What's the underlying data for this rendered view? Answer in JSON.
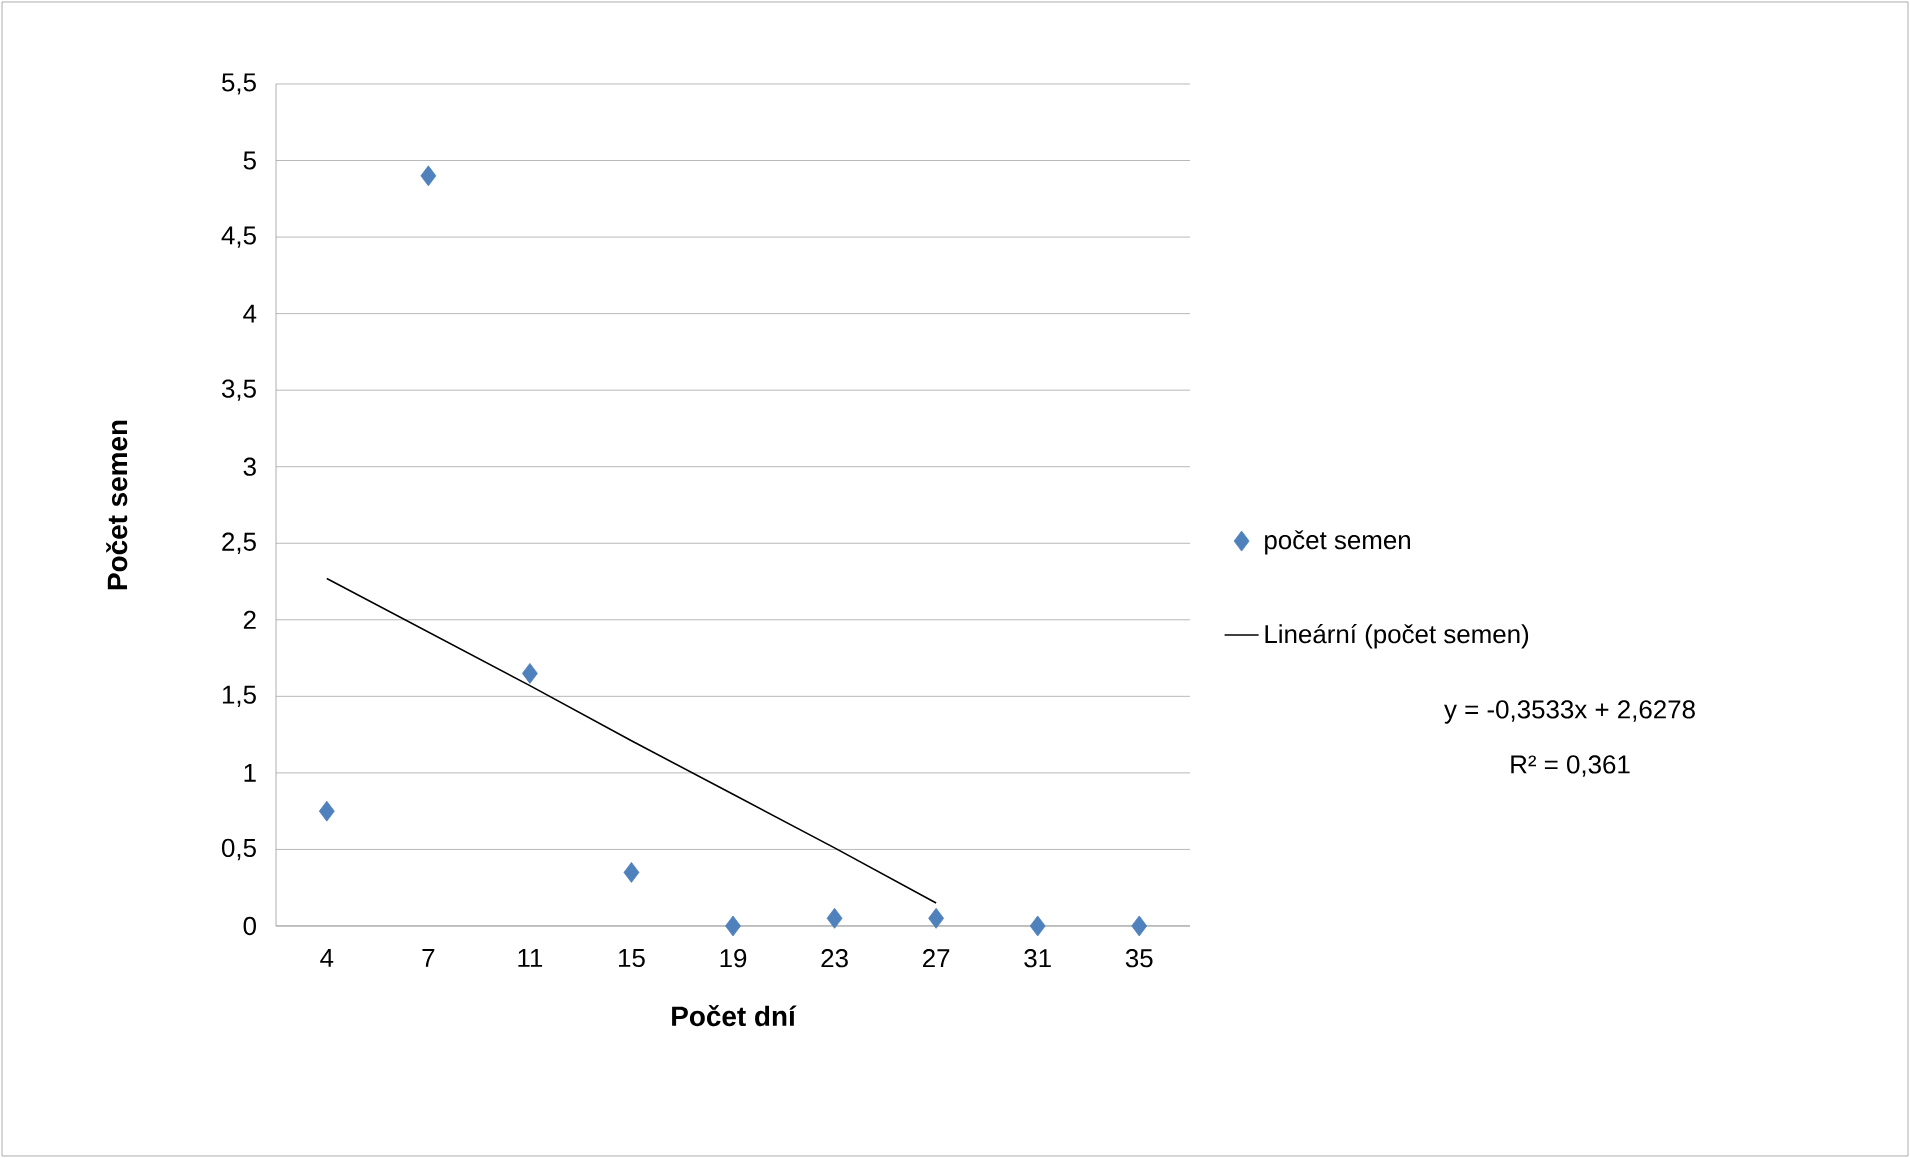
{
  "chart_data": {
    "type": "scatter",
    "xlabel": "Počet dní",
    "ylabel": "Počet semen",
    "categories": [
      "4",
      "7",
      "11",
      "15",
      "19",
      "23",
      "27",
      "31",
      "35"
    ],
    "series": [
      {
        "name": "počet semen",
        "color": "#4f81bd",
        "marker": "diamond",
        "values": [
          0.75,
          4.9,
          1.65,
          0.35,
          0,
          0.05,
          0.05,
          0,
          0
        ]
      },
      {
        "name": "Lineární (počet semen)",
        "type": "line",
        "color": "#000000",
        "marker": "none",
        "values": [
          2.27,
          1.92,
          1.57,
          1.21,
          0.86,
          0.51,
          0.15,
          null,
          null
        ]
      }
    ],
    "ylim": [
      0,
      5.5
    ],
    "yticks": [
      0,
      {
        "value": 0.5,
        "label": "0,5"
      },
      1,
      {
        "value": 1.5,
        "label": "1,5"
      },
      2,
      {
        "value": 2.5,
        "label": "2,5"
      },
      3,
      {
        "value": 3.5,
        "label": "3,5"
      },
      4,
      {
        "value": 4.5,
        "label": "4,5"
      },
      5,
      {
        "value": 5.5,
        "label": "5,5"
      }
    ],
    "grid": "y",
    "legend": "right",
    "annotations": [
      "y = -0,3533x + 2,6278",
      "R² = 0,361"
    ]
  }
}
